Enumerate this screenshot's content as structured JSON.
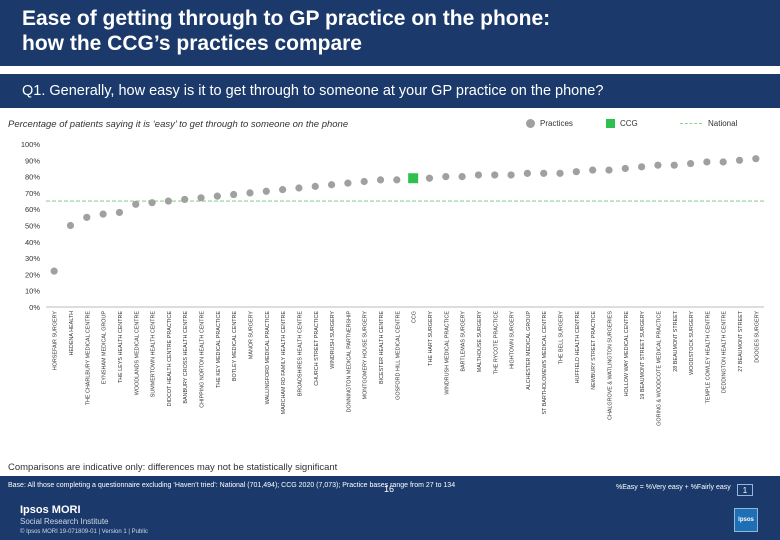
{
  "title_line1": "Ease of getting through to GP practice on the phone:",
  "title_line2": "how the CCG’s practices compare",
  "question": "Q1. Generally, how easy is it to get through to someone at your GP practice on the phone?",
  "subtitle": "Percentage of patients saying it is ‘easy’ to get through to someone on the phone",
  "legend": {
    "practices": "Practices",
    "ccg": "CCG",
    "national": "National"
  },
  "note": "Comparisons are indicative only: differences may not be statistically significant",
  "footer": {
    "base": "Base: All those completing a questionnaire excluding ‘Haven’t tried’: National (701,494); CCG 2020 (7,073); Practice bases range from 27 to 134",
    "definition": "%Easy = %Very easy + %Fairly easy",
    "logo_line1": "Ipsos MORI",
    "logo_line2": "Social Research Institute",
    "copyright": "© Ipsos MORI     19-071809-01 | Version 1 | Public",
    "page_number": "16",
    "brand": "Ipsos",
    "page_box": "1"
  },
  "colors": {
    "practice": "#a0a0a0",
    "ccg": "#2fbf4f",
    "national": "#8bd58d",
    "header": "#1b3a6b"
  },
  "chart_data": {
    "type": "scatter",
    "ylim": [
      0,
      100
    ],
    "yticks": [
      "0%",
      "10%",
      "20%",
      "30%",
      "40%",
      "50%",
      "60%",
      "70%",
      "80%",
      "90%",
      "100%"
    ],
    "national_value": 65,
    "categories": [
      "HORSEFAIR SURGERY",
      "HEDENA HEALTH",
      "THE CHARLBURY MEDICAL CENTRE",
      "EYNSHAM MEDICAL GROUP",
      "THE LEYS HEALTH CENTRE",
      "WOODLANDS MEDICAL CENTRE",
      "SUMMERTOWN HEALTH CENTRE",
      "DIDCOT HEALTH CENTRE PRACTICE",
      "BANBURY CROSS HEALTH CENTRE",
      "CHIPPING NORTON HEALTH CENTRE",
      "THE KEY MEDICAL PRACTICE",
      "BOTLEY MEDICAL CENTRE",
      "MANOR SURGERY",
      "WALLINGFORD MEDICAL PRACTICE",
      "MARCHAM RD FAMILY HEALTH CENTRE",
      "BROADSHIRES HEALTH CENTRE",
      "CHURCH STREET PRACTICE",
      "WINDRUSH SURGERY",
      "DONNINGTON MEDICAL PARTNERSHIP",
      "MONTGOMERY HOUSE SURGERY",
      "BICESTER HEALTH CENTRE",
      "GOSFORD HILL MEDICAL CENTRE",
      "CCG",
      "THE HART SURGERY",
      "WINDRUSH MEDICAL PRACTICE",
      "BARTLEMAS SURGERY",
      "MALTHOUSE SURGERY",
      "THE RYCOTE PRACTICE",
      "HIGHTOWN SURGERY",
      "ALCHESTER MEDICAL GROUP",
      "ST BARTHOLOMEWS MEDICAL CENTRE",
      "THE BELL SURGERY",
      "HUFFIELD HEALTH CENTRE",
      "NEWBURY STREET PRACTICE",
      "CHALGROVE & WATLINGTON SURGERIES",
      "HOLLOW WAY MEDICAL CENTRE",
      "19 BEAUMONT STREET SURGERY",
      "GORING & WOODCOTE MEDICAL PRACTICE",
      "28 BEAUMONT STREET",
      "WOODSTOCK SURGERY",
      "TEMPLE COWLEY HEALTH CENTRE",
      "DEDDINGTON HEALTH CENTRE",
      "27 BEAUMONT STREET",
      "DOOGES SURGERY"
    ],
    "values": [
      22,
      50,
      55,
      57,
      58,
      63,
      64,
      65,
      66,
      67,
      68,
      69,
      70,
      71,
      72,
      73,
      74,
      75,
      76,
      77,
      78,
      78,
      79,
      79,
      80,
      80,
      81,
      81,
      81,
      82,
      82,
      82,
      83,
      84,
      84,
      85,
      86,
      87,
      87,
      88,
      89,
      89,
      90,
      91
    ],
    "ccg_index": 22
  }
}
